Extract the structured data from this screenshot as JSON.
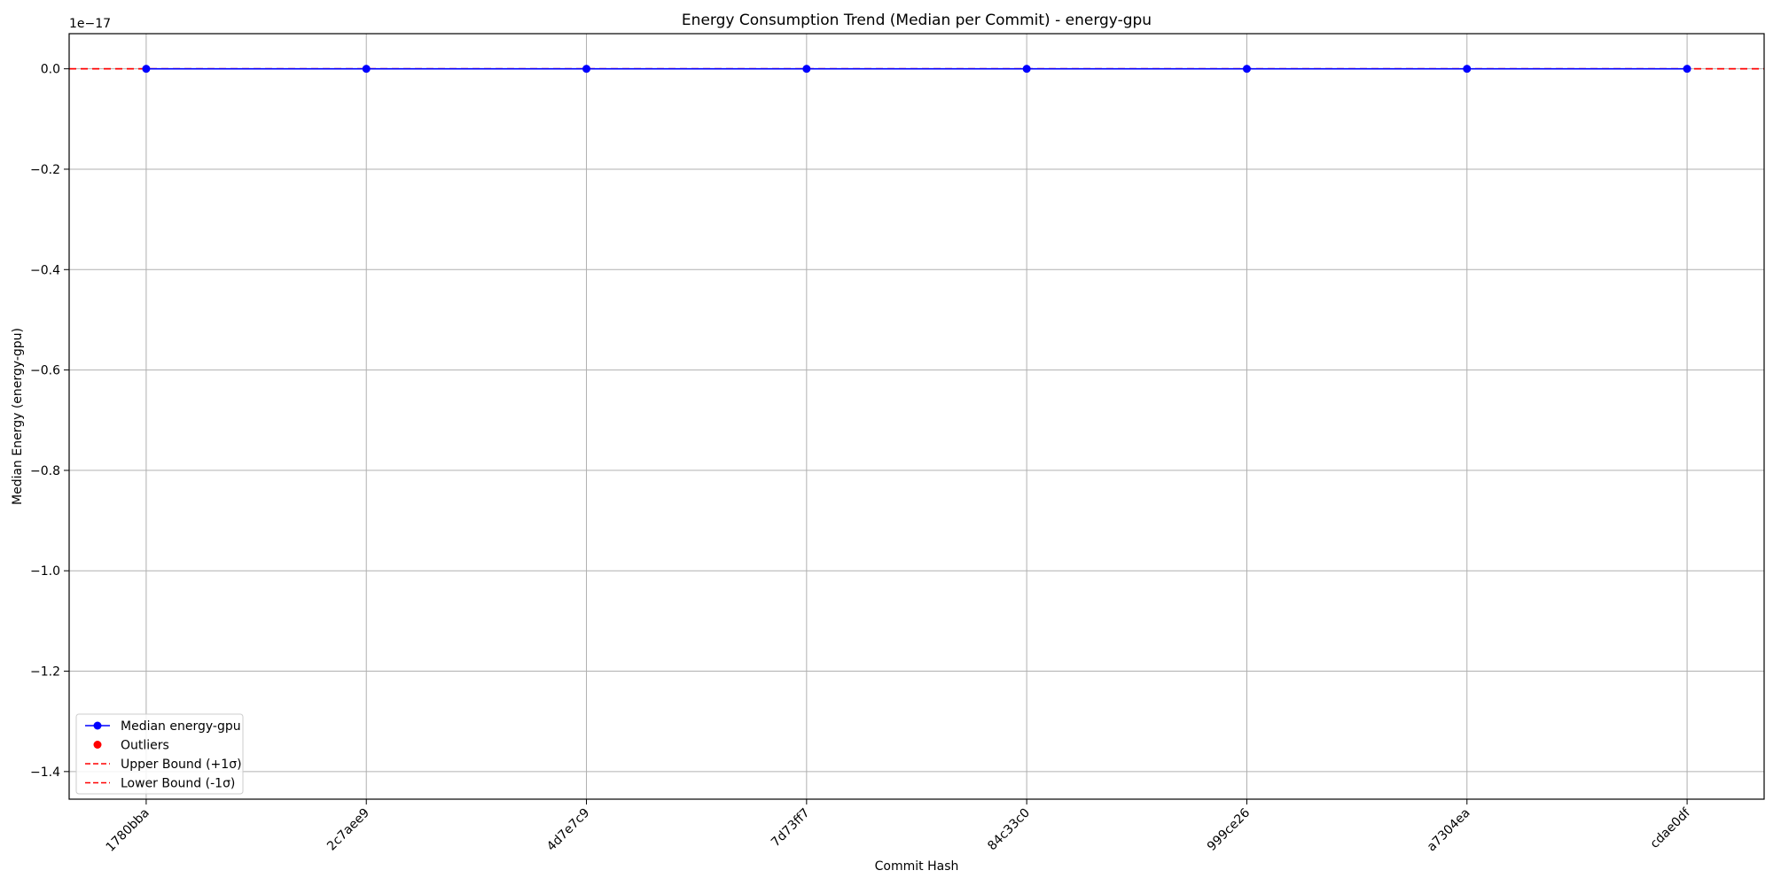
{
  "chart_data": {
    "type": "line",
    "title": "Energy Consumption Trend (Median per Commit) - energy-gpu",
    "xlabel": "Commit Hash",
    "ylabel": "Median Energy (energy-gpu)",
    "y_offset_label": "1e−17",
    "categories": [
      "1780bba",
      "2c7aee9",
      "4d7e7c9",
      "7d73ff7",
      "84c33c0",
      "999ce26",
      "a7304ea",
      "cdae0df"
    ],
    "series": [
      {
        "name": "Median energy-gpu",
        "values": [
          0,
          0,
          0,
          0,
          0,
          0,
          0,
          0
        ],
        "color": "#0000ff",
        "marker": "circle"
      }
    ],
    "outliers": {
      "name": "Outliers",
      "values": [],
      "color": "#ff0000"
    },
    "upper_bound": {
      "name": "Upper Bound (+1σ)",
      "value": 0,
      "color": "#ff0000",
      "style": "dashed"
    },
    "lower_bound": {
      "name": "Lower Bound (-1σ)",
      "value": 0,
      "color": "#ff0000",
      "style": "dashed"
    },
    "yticks": [
      0.0,
      -0.2,
      -0.4,
      -0.6,
      -0.8,
      -1.0,
      -1.2,
      -1.4
    ],
    "ytick_labels": [
      "0.0",
      "−0.2",
      "−0.4",
      "−0.6",
      "−0.8",
      "−1.0",
      "−1.2",
      "−1.4"
    ],
    "ylim": [
      -1.455,
      0.07
    ],
    "xlim": [
      -0.35,
      7.35
    ],
    "grid": true,
    "legend_position": "lower-left"
  }
}
